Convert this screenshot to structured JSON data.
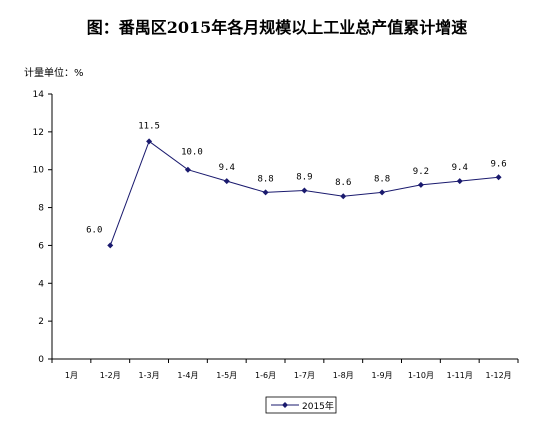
{
  "chart_data": {
    "type": "line",
    "title": "图：番禺区2015年各月规模以上工业总产值累计增速",
    "unit_label": "计量单位：%",
    "categories": [
      "1月",
      "1-2月",
      "1-3月",
      "1-4月",
      "1-5月",
      "1-6月",
      "1-7月",
      "1-8月",
      "1-9月",
      "1-10月",
      "1-11月",
      "1-12月"
    ],
    "series": [
      {
        "name": "2015年",
        "values": [
          null,
          6.0,
          11.5,
          10.0,
          9.4,
          8.8,
          8.9,
          8.6,
          8.8,
          9.2,
          9.4,
          9.6
        ],
        "labels": [
          "",
          "6.0",
          "11.5",
          "10.0",
          "9.4",
          "8.8",
          "8.9",
          "8.6",
          "8.8",
          "9.2",
          "9.4",
          "9.6"
        ],
        "color": "#1a1a6e"
      }
    ],
    "ylim": [
      0,
      14
    ],
    "yticks": [
      "0",
      "2",
      "4",
      "6",
      "8",
      "10",
      "12",
      "14"
    ],
    "grid": false,
    "legend_position": "bottom"
  }
}
